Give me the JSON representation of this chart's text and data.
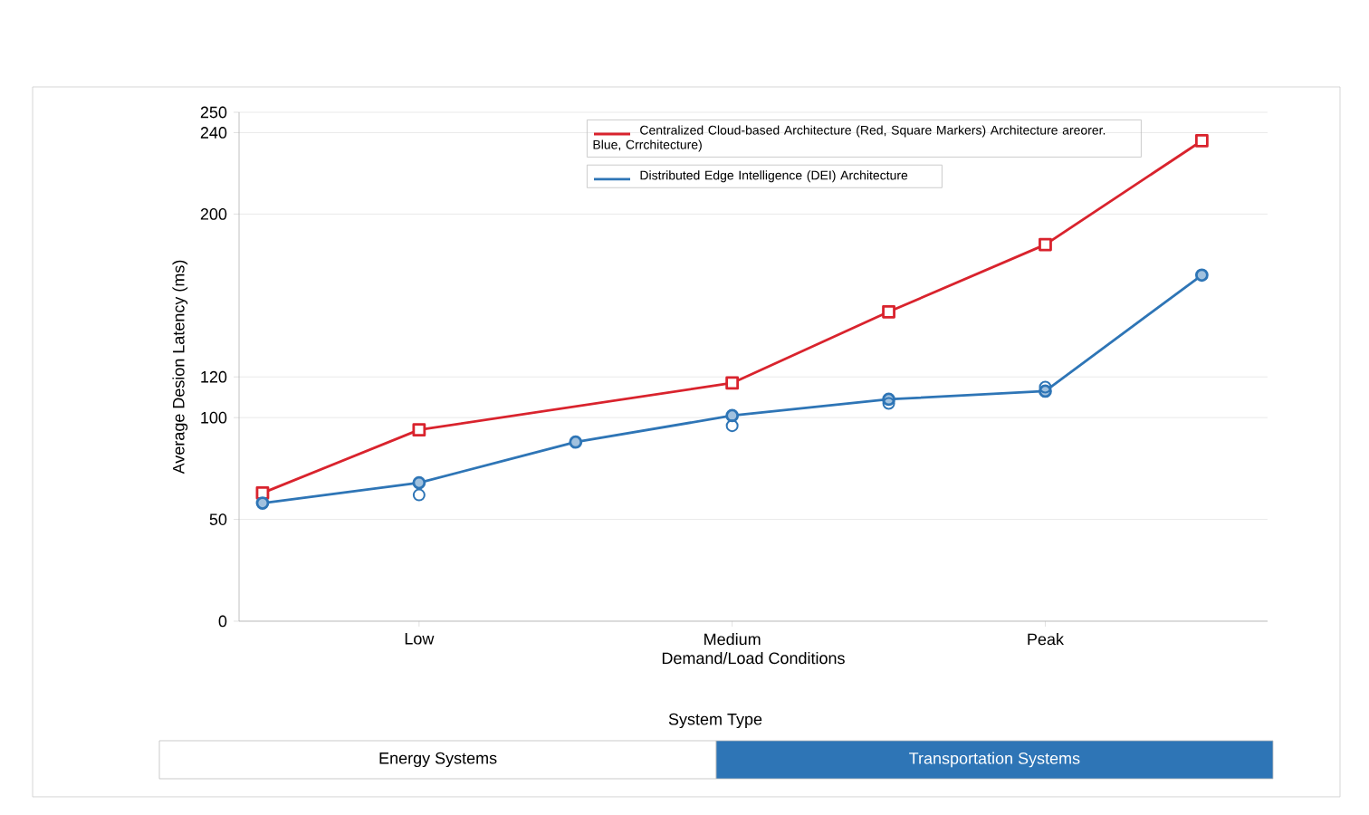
{
  "chart_data": {
    "type": "line",
    "xlabel": "Demand/Load Conditions",
    "ylabel": "Average Desion Latency (ms)",
    "categories": [
      null,
      "Low",
      null,
      "Medium",
      null,
      "Peak",
      null
    ],
    "ylim": [
      0,
      250
    ],
    "yticks": [
      0,
      50,
      100,
      120,
      200,
      240,
      250
    ],
    "grid": "y",
    "legend": "top right",
    "line_style": "solid",
    "series": [
      {
        "name": "Centralized Cloud-based Architecture (Red, Square Markers) Architecture areorer. Blue, Crrchitecture)",
        "color": "#d9232d",
        "marker": "square",
        "values": [
          63,
          94,
          null,
          117,
          152,
          185,
          236
        ]
      },
      {
        "name": "Distributed Edge Intelligence (DEI) Architecture",
        "color": "#2e75b6",
        "marker": "circle",
        "values": [
          58,
          68,
          88,
          101,
          109,
          113,
          170
        ]
      },
      {
        "type": "scatter",
        "color": "#2e75b6",
        "marker": "circle",
        "values": [
          null,
          62,
          null,
          96,
          107,
          115,
          null
        ]
      }
    ],
    "annotations": [
      "System Type",
      "Energy Systems",
      "Transportation Systems"
    ]
  }
}
